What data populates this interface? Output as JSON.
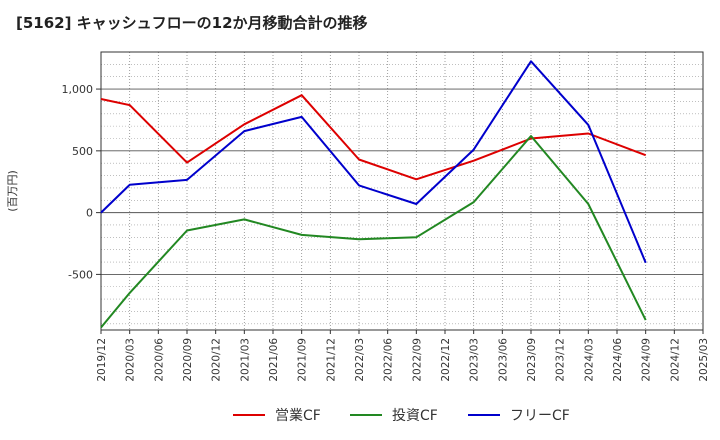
{
  "chart_data": {
    "type": "line",
    "title": "[5162]  キャッシュフローの12か月移動合計の推移",
    "ylabel": "(百万円)",
    "xlabel": "",
    "ylim": [
      -950,
      1300
    ],
    "yticks": [
      -500,
      0,
      500,
      1000
    ],
    "ytick_labels": [
      "-500",
      "0",
      "500",
      "1,000"
    ],
    "grid": true,
    "legend_position": "bottom",
    "x": [
      "2019/12",
      "2020/03",
      "2020/06",
      "2020/09",
      "2020/12",
      "2021/03",
      "2021/06",
      "2021/09",
      "2021/12",
      "2022/03",
      "2022/06",
      "2022/09",
      "2022/12",
      "2023/03",
      "2023/06",
      "2023/09",
      "2023/12",
      "2024/03",
      "2024/06",
      "2024/09",
      "2024/12",
      "2025/03"
    ],
    "series": [
      {
        "name": "営業CF",
        "color": "#dd0000",
        "values": [
          920,
          870,
          null,
          405,
          null,
          715,
          null,
          950,
          null,
          430,
          null,
          270,
          null,
          420,
          null,
          600,
          null,
          640,
          null,
          465,
          null,
          null
        ]
      },
      {
        "name": "投資CF",
        "color": "#228822",
        "values": [
          -930,
          -650,
          null,
          -145,
          null,
          -55,
          null,
          -180,
          null,
          -215,
          null,
          -200,
          null,
          85,
          null,
          620,
          null,
          70,
          null,
          -870,
          null,
          null
        ]
      },
      {
        "name": "フリーCF",
        "color": "#0000cc",
        "values": [
          0,
          225,
          null,
          265,
          null,
          660,
          null,
          775,
          null,
          220,
          null,
          70,
          null,
          510,
          null,
          1225,
          null,
          710,
          null,
          -405,
          null,
          null
        ]
      }
    ]
  }
}
